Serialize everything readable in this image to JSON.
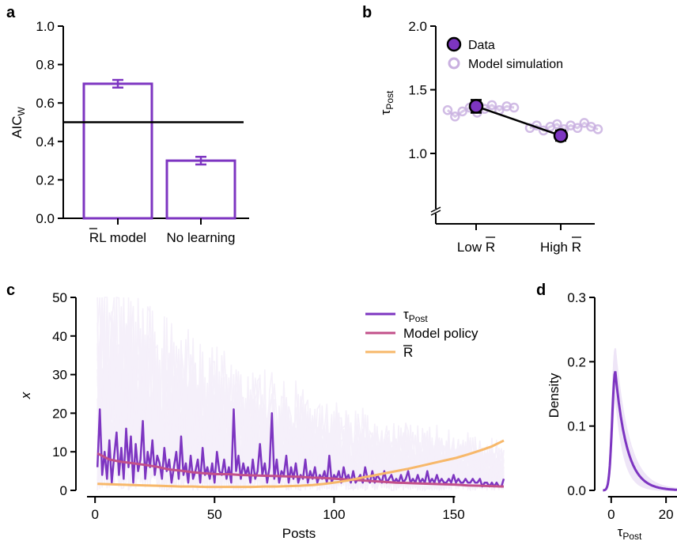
{
  "colors": {
    "purple": "#7d35c1",
    "purple_light": "#c9b0e0",
    "pink": "#c2508a",
    "orange": "#f7b86a",
    "black": "#000000"
  },
  "panels": {
    "a": {
      "letter": "a"
    },
    "b": {
      "letter": "b"
    },
    "c": {
      "letter": "c"
    },
    "d": {
      "letter": "d"
    }
  },
  "chart_data": [
    {
      "panel": "a",
      "type": "bar",
      "categories": [
        "RL model",
        "No learning"
      ],
      "overline_chars": [
        [
          0,
          1
        ],
        [
          0,
          0
        ]
      ],
      "values": [
        0.7,
        0.3
      ],
      "errors": [
        0.02,
        0.02
      ],
      "reference_line": 0.5,
      "ylabel": "AIC",
      "ylabel_sub": "W",
      "ylim": [
        0,
        1.0
      ],
      "yticks": [
        "0.0",
        "0.2",
        "0.4",
        "0.6",
        "0.8",
        "1.0"
      ],
      "ytick_values": [
        0,
        0.2,
        0.4,
        0.6,
        0.8,
        1.0
      ],
      "bar_style": "outline",
      "color": "#7d35c1"
    },
    {
      "panel": "b",
      "type": "scatter",
      "categories": [
        "Low R",
        "High R"
      ],
      "ylabel": "τ",
      "ylabel_sub": "Post",
      "ylim": [
        0.6,
        2.0
      ],
      "yticks": [
        "1.0",
        "1.5",
        "2.0"
      ],
      "ytick_values": [
        1.0,
        1.5,
        2.0
      ],
      "axis_break": true,
      "series": [
        {
          "name": "Data",
          "values": [
            1.37,
            1.14
          ],
          "errors": [
            0.05,
            0.04
          ],
          "color": "#7d35c1"
        },
        {
          "name": "Model simulation",
          "color": "#c9b0e0",
          "low": [
            1.34,
            1.29,
            1.33,
            1.36,
            1.32,
            1.35,
            1.38,
            1.34,
            1.37,
            1.36
          ],
          "high": [
            1.2,
            1.22,
            1.18,
            1.21,
            1.23,
            1.19,
            1.22,
            1.2,
            1.24,
            1.21,
            1.19
          ]
        }
      ],
      "legend": [
        "Data",
        "Model simulation"
      ],
      "legend_position": "top-right"
    },
    {
      "panel": "c",
      "type": "line",
      "xlabel": "Posts",
      "ylabel": "x",
      "xlim": [
        -8,
        172
      ],
      "ylim": [
        0,
        50
      ],
      "xticks": [
        "0",
        "50",
        "100",
        "150"
      ],
      "xtick_values": [
        0,
        50,
        100,
        150
      ],
      "yticks": [
        "0",
        "10",
        "20",
        "30",
        "40",
        "50"
      ],
      "ytick_values": [
        0,
        10,
        20,
        30,
        40,
        50
      ],
      "legend_position": "top-right",
      "series": [
        {
          "name": "τ",
          "name_sub": "Post",
          "color": "#7d35c1",
          "values": [
            6,
            21,
            4,
            10,
            3,
            13,
            2,
            9,
            15,
            4,
            11,
            3,
            16,
            6,
            14,
            2,
            12,
            5,
            8,
            18,
            3,
            10,
            6,
            13,
            4,
            9,
            7,
            3,
            11,
            5,
            8,
            2,
            6,
            10,
            3,
            14,
            4,
            7,
            2,
            9,
            3,
            5,
            8,
            2,
            11,
            4,
            6,
            3,
            7,
            2,
            10,
            5,
            4,
            8,
            3,
            6,
            2,
            21,
            5,
            9,
            3,
            7,
            4,
            6,
            2,
            8,
            3,
            5,
            12,
            4,
            7,
            2,
            6,
            20,
            3,
            8,
            2,
            5,
            4,
            9,
            2,
            6,
            3,
            7,
            2,
            4,
            3,
            8,
            2,
            5,
            3,
            6,
            2,
            4,
            3,
            5,
            2,
            9,
            2,
            4,
            3,
            5,
            2,
            6,
            3,
            4,
            2,
            5,
            2,
            3,
            4,
            2,
            6,
            3,
            2,
            5,
            2,
            4,
            3,
            2,
            5,
            2,
            3,
            4,
            2,
            3,
            2,
            4,
            2,
            3,
            5,
            2,
            3,
            2,
            4,
            2,
            3,
            2,
            5,
            2,
            3,
            2,
            4,
            2,
            3,
            2,
            2,
            3,
            2,
            4,
            2,
            3,
            2,
            2,
            3,
            2,
            2,
            3,
            2,
            2,
            3,
            1,
            2,
            2,
            1,
            2,
            1,
            2,
            1,
            1,
            3
          ]
        },
        {
          "name": "Model policy",
          "color": "#c2508a",
          "values": [
            9.6,
            8.0,
            7.4,
            7.0,
            6.6,
            6.1,
            5.4,
            5.1,
            4.7,
            4.4,
            4.2,
            4.2,
            4.0,
            3.9,
            3.8,
            3.7,
            3.6,
            3.5,
            3.3,
            3.2,
            3.0,
            2.8,
            2.6,
            2.4,
            2.2,
            2.0,
            1.9,
            1.8,
            1.7,
            1.6,
            1.5,
            1.3,
            1.2,
            1.1,
            1.0
          ]
        },
        {
          "name": "R",
          "overline": true,
          "color": "#f7b86a",
          "values": [
            1.7,
            1.6,
            1.5,
            1.4,
            1.3,
            1.2,
            1.1,
            1.0,
            1.0,
            0.9,
            0.9,
            0.9,
            0.9,
            0.9,
            1.0,
            1.0,
            1.1,
            1.2,
            1.4,
            1.7,
            2.1,
            2.6,
            3.2,
            3.8,
            4.4,
            5.0,
            5.6,
            6.3,
            7.0,
            7.7,
            8.4,
            9.3,
            10.3,
            11.4,
            12.9
          ]
        }
      ]
    },
    {
      "panel": "d",
      "type": "line",
      "xlabel": "τ",
      "xlabel_sub": "Post",
      "ylabel": "Density",
      "xlim": [
        -6,
        24
      ],
      "ylim": [
        0,
        0.3
      ],
      "xticks": [
        "0",
        "20"
      ],
      "xtick_values": [
        0,
        20
      ],
      "yticks": [
        "0.0",
        "0.1",
        "0.2",
        "0.3"
      ],
      "ytick_values": [
        0,
        0.1,
        0.2,
        0.3
      ],
      "peak_x": 1.5,
      "peak_density": 0.185,
      "color": "#7d35c1"
    }
  ]
}
